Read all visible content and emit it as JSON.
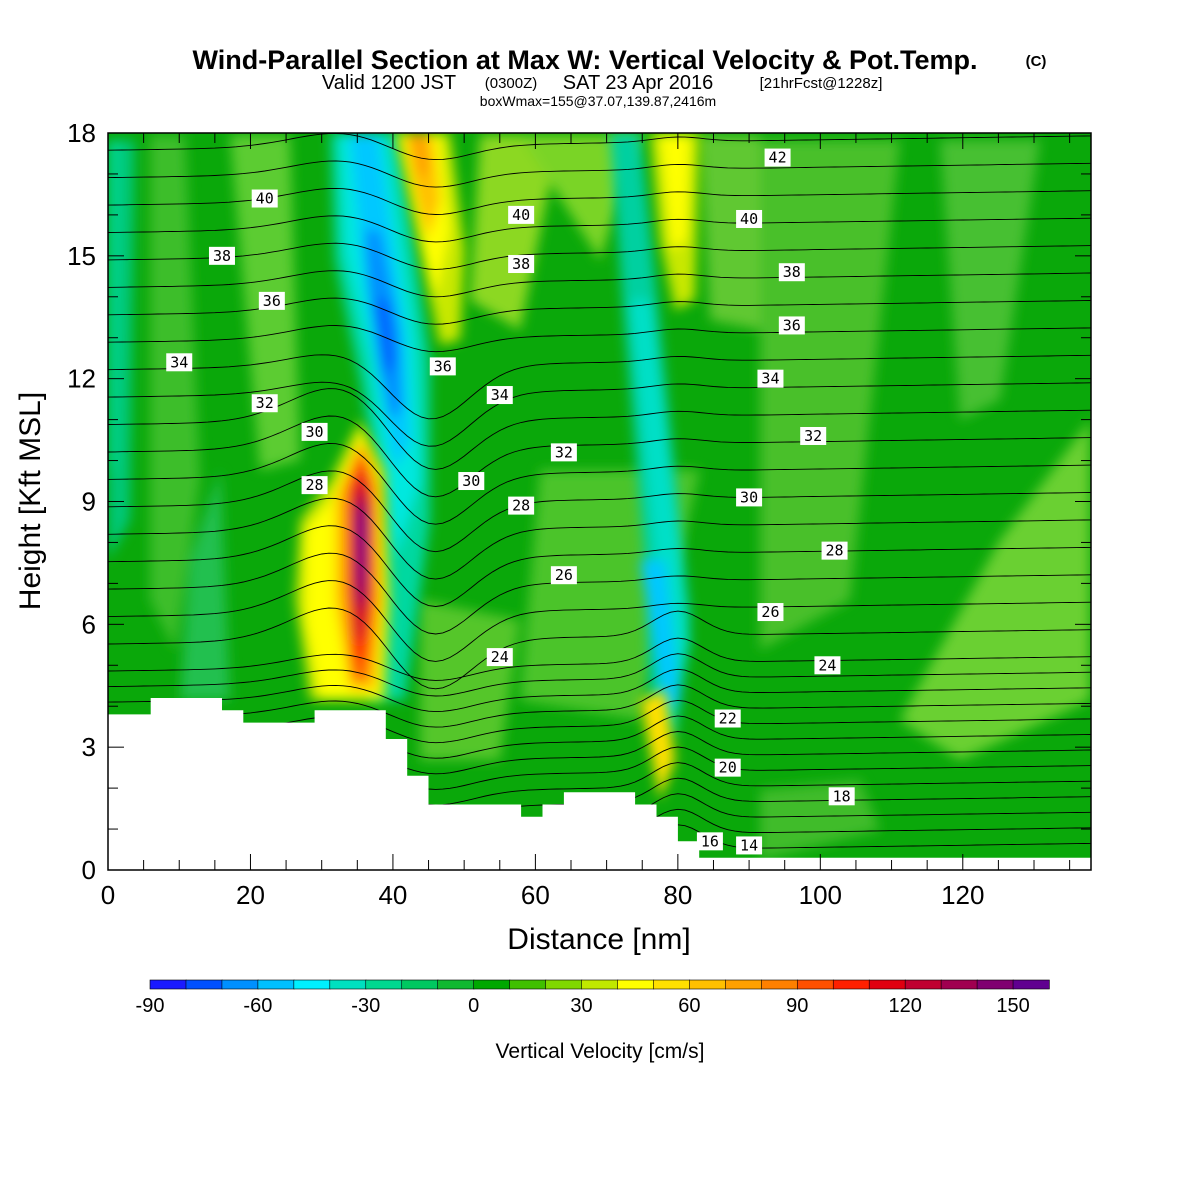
{
  "header": {
    "title": "Wind-Parallel Section at Max W: Vertical Velocity & Pot.Temp.",
    "title_mark": "(C)",
    "subtitle_valid": "Valid 1200 JST",
    "subtitle_utc": "(0300Z)",
    "subtitle_date": "SAT 23 Apr 2016",
    "subtitle_fcst": "[21hrFcst@1228z]",
    "box_info": "boxWmax=155@37.07,139.87,2416m"
  },
  "chart_data": {
    "type": "heatmap",
    "xlabel": "Distance [nm]",
    "ylabel": "Height [Kft MSL]",
    "xlim": [
      0,
      138
    ],
    "ylim": [
      0,
      18
    ],
    "x_ticks": [
      0,
      20,
      40,
      60,
      80,
      100,
      120
    ],
    "y_ticks": [
      0,
      3,
      6,
      9,
      12,
      15,
      18
    ],
    "colorbar": {
      "label": "Vertical Velocity [cm/s]",
      "min": -90,
      "max": 160,
      "step": 10,
      "ticks": [
        -90,
        -60,
        -30,
        0,
        30,
        60,
        90,
        120,
        150
      ],
      "colors": [
        "#1a1aff",
        "#0050ff",
        "#0090ff",
        "#00c0ff",
        "#00f0ff",
        "#00e0c0",
        "#00d890",
        "#00c860",
        "#10b830",
        "#00a800",
        "#40c000",
        "#80d800",
        "#c0e800",
        "#ffff00",
        "#ffe000",
        "#ffc000",
        "#ffa000",
        "#ff8000",
        "#ff5000",
        "#ff2000",
        "#e00010",
        "#c00030",
        "#a00050",
        "#800070",
        "#600090"
      ]
    },
    "velocity_features": [
      {
        "name": "updraft-core",
        "x": 36,
        "y": 7.8,
        "value": 155
      },
      {
        "name": "downdraft-core",
        "x": 39,
        "y": 12.5,
        "value": -70
      },
      {
        "name": "updraft-upper",
        "x": 44,
        "y": 16.5,
        "value": 70
      },
      {
        "name": "updraft-east",
        "x": 79,
        "y": 16.5,
        "value": 40
      }
    ],
    "terrain_profile": [
      [
        0,
        3.8
      ],
      [
        6,
        3.8
      ],
      [
        6,
        4.2
      ],
      [
        16,
        4.2
      ],
      [
        16,
        3.9
      ],
      [
        19,
        3.9
      ],
      [
        19,
        3.6
      ],
      [
        29,
        3.6
      ],
      [
        29,
        3.9
      ],
      [
        39,
        3.9
      ],
      [
        39,
        3.2
      ],
      [
        42,
        3.2
      ],
      [
        42,
        2.3
      ],
      [
        45,
        2.3
      ],
      [
        45,
        1.6
      ],
      [
        58,
        1.6
      ],
      [
        58,
        1.3
      ],
      [
        61,
        1.3
      ],
      [
        61,
        1.6
      ],
      [
        64,
        1.6
      ],
      [
        64,
        1.9
      ],
      [
        74,
        1.9
      ],
      [
        74,
        1.6
      ],
      [
        77,
        1.6
      ],
      [
        77,
        1.3
      ],
      [
        80,
        1.3
      ],
      [
        80,
        0.7
      ],
      [
        83,
        0.7
      ],
      [
        83,
        0.3
      ],
      [
        138,
        0.3
      ]
    ],
    "theta_contours": [
      {
        "value": 14,
        "label": "14",
        "label_x": 90,
        "label_y": 0.6
      },
      {
        "value": 16,
        "label": "16",
        "label_x": 84.5,
        "label_y": 0.7
      },
      {
        "value": 18,
        "label": "18",
        "label_x": 103,
        "label_y": 1.8
      },
      {
        "value": 20,
        "label": "20",
        "label_x": 87,
        "label_y": 2.5
      },
      {
        "value": 22,
        "label": "22",
        "label_x": 87,
        "label_y": 3.7
      },
      {
        "value": 24,
        "label": "24",
        "label_x": 55,
        "label_y": 5.2
      },
      {
        "value": 24,
        "label": "24",
        "label_x": 101,
        "label_y": 5.0
      },
      {
        "value": 26,
        "label": "26",
        "label_x": 64,
        "label_y": 7.2
      },
      {
        "value": 26,
        "label": "26",
        "label_x": 93,
        "label_y": 6.3
      },
      {
        "value": 28,
        "label": "28",
        "label_x": 29,
        "label_y": 9.4
      },
      {
        "value": 28,
        "label": "28",
        "label_x": 58,
        "label_y": 8.9
      },
      {
        "value": 28,
        "label": "28",
        "label_x": 102,
        "label_y": 7.8
      },
      {
        "value": 30,
        "label": "30",
        "label_x": 29,
        "label_y": 10.7
      },
      {
        "value": 30,
        "label": "30",
        "label_x": 51,
        "label_y": 9.5
      },
      {
        "value": 30,
        "label": "30",
        "label_x": 90,
        "label_y": 9.1
      },
      {
        "value": 32,
        "label": "32",
        "label_x": 22,
        "label_y": 11.4
      },
      {
        "value": 32,
        "label": "32",
        "label_x": 64,
        "label_y": 10.2
      },
      {
        "value": 32,
        "label": "32",
        "label_x": 99,
        "label_y": 10.6
      },
      {
        "value": 34,
        "label": "34",
        "label_x": 10,
        "label_y": 12.4
      },
      {
        "value": 34,
        "label": "34",
        "label_x": 55,
        "label_y": 11.6
      },
      {
        "value": 34,
        "label": "34",
        "label_x": 93,
        "label_y": 12.0
      },
      {
        "value": 36,
        "label": "36",
        "label_x": 23,
        "label_y": 13.9
      },
      {
        "value": 36,
        "label": "36",
        "label_x": 47,
        "label_y": 12.3
      },
      {
        "value": 36,
        "label": "36",
        "label_x": 96,
        "label_y": 13.3
      },
      {
        "value": 38,
        "label": "38",
        "label_x": 16,
        "label_y": 15.0
      },
      {
        "value": 38,
        "label": "38",
        "label_x": 58,
        "label_y": 14.8
      },
      {
        "value": 38,
        "label": "38",
        "label_x": 96,
        "label_y": 14.6
      },
      {
        "value": 40,
        "label": "40",
        "label_x": 22,
        "label_y": 16.4
      },
      {
        "value": 40,
        "label": "40",
        "label_x": 58,
        "label_y": 16.0
      },
      {
        "value": 40,
        "label": "40",
        "label_x": 90,
        "label_y": 15.9
      },
      {
        "value": 42,
        "label": "42",
        "label_x": 94,
        "label_y": 17.4
      }
    ]
  }
}
